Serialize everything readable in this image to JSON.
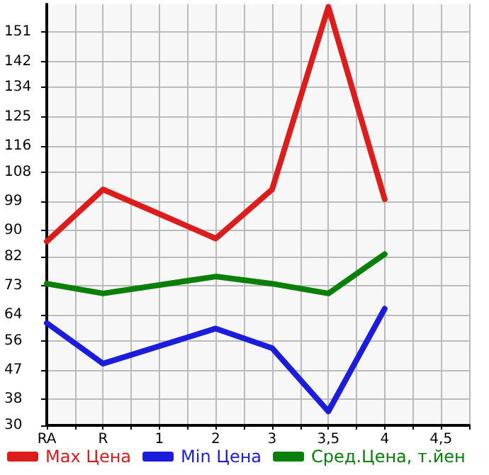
{
  "chart_data": {
    "type": "line",
    "categories": [
      "RA",
      "R",
      "1",
      "2",
      "3",
      "3,5",
      "4",
      "4,5"
    ],
    "series": [
      {
        "name": "Max Цена",
        "color": "#dd1c1c",
        "values": [
          86.6,
          102.6,
          null,
          87.5,
          102.6,
          158.8,
          99.6,
          null
        ]
      },
      {
        "name": "Min Цена",
        "color": "#1c1cdd",
        "values": [
          61.5,
          49,
          null,
          59.8,
          53.8,
          34.3,
          65.9,
          null
        ]
      },
      {
        "name": "Сред.Цена, т.йен",
        "color": "#0a800a",
        "values": [
          73.6,
          70.6,
          null,
          75.8,
          73.6,
          70.6,
          82.7,
          null
        ]
      }
    ],
    "ylim": [
      30,
      159.6
    ],
    "yticks": [
      30,
      38,
      47,
      56,
      64,
      73,
      82,
      90,
      99,
      108,
      116,
      125,
      134,
      142,
      151
    ],
    "grid": true,
    "legend": "bottom",
    "marker": "none",
    "line_style": "solid"
  }
}
